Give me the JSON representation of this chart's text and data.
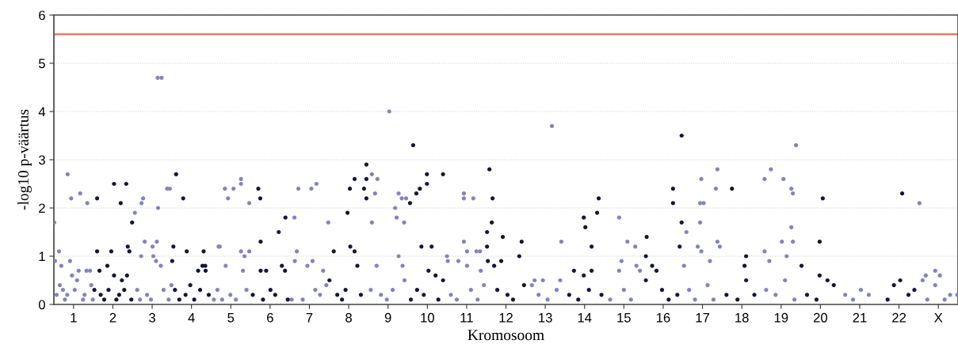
{
  "chart_data": {
    "type": "scatter",
    "xlabel": "Kromosoom",
    "ylabel": "-log10 p-väärtus",
    "xlim": [
      0.5,
      23.5
    ],
    "ylim": [
      0,
      6
    ],
    "yticks": [
      0,
      1,
      2,
      3,
      4,
      5,
      6
    ],
    "xticks": [
      1,
      2,
      3,
      4,
      5,
      6,
      7,
      8,
      9,
      10,
      11,
      12,
      13,
      14,
      15,
      16,
      17,
      18,
      19,
      20,
      21,
      22,
      {
        "value": 23,
        "label": "X"
      }
    ],
    "grid": "y",
    "marker": "circle",
    "ref_lines": [
      {
        "axis": "y",
        "value": 5.6,
        "color": "#f26a4f"
      }
    ],
    "series": [
      {
        "color": "#8282c6",
        "x": [
          0.51,
          0.53,
          0.63,
          0.69,
          0.85,
          0.91,
          0.94,
          0.96,
          1.17,
          1.35,
          1.33,
          1.42,
          1.13,
          0.57,
          0.65,
          0.73,
          0.78,
          0.84,
          1.03,
          1.09,
          1.24,
          1.28,
          1.45,
          1.49,
          2.56,
          2.73,
          2.77,
          3.14,
          3.24,
          3.15,
          3.38,
          3.45,
          2.81,
          3.12,
          3.01,
          3.03,
          2.72,
          3.22,
          3.1,
          2.62,
          2.69,
          2.87,
          2.97,
          3.29,
          3.42,
          3.49,
          4.85,
          4.93,
          5.07,
          5.26,
          5.26,
          5.47,
          4.69,
          4.72,
          5.26,
          5.35,
          5.47,
          4.87,
          5.31,
          4.57,
          4.66,
          4.78,
          4.99,
          5.13,
          5.4,
          6.62,
          6.72,
          7.05,
          7.18,
          6.68,
          6.63,
          7.08,
          6.95,
          7.48,
          7.35,
          6.55,
          6.83,
          7.15,
          7.27,
          7.43,
          8.59,
          8.73,
          8.67,
          8.59,
          8.71,
          9.03,
          9.18,
          9.22,
          9.27,
          9.35,
          9.46,
          9.41,
          9.27,
          9.37,
          8.56,
          8.82,
          8.97,
          9.12,
          9.42,
          10.5,
          10.52,
          10.79,
          10.93,
          10.93,
          11.17,
          10.93,
          11.01,
          11.25,
          11.34,
          11.01,
          11.36,
          10.6,
          10.75,
          11.11,
          11.28,
          11.44,
          13.17,
          13.41,
          12.73,
          12.94,
          13.38,
          12.66,
          12.83,
          13.06,
          13.29,
          14.88,
          15.09,
          15.29,
          14.94,
          15.32,
          15.41,
          14.88,
          14.65,
          15.0,
          15.18,
          16.59,
          16.53,
          16.88,
          16.94,
          17.03,
          16.97,
          16.94,
          17.19,
          17.34,
          17.38,
          17.38,
          17.44,
          16.97,
          16.66,
          16.81,
          17.13,
          17.28,
          18.58,
          18.74,
          19.06,
          19.26,
          19.3,
          19.38,
          19.26,
          19.3,
          19.02,
          18.58,
          19.14,
          18.7,
          18.62,
          18.86,
          19.1,
          19.34,
          21.03,
          21.23,
          20.63,
          20.83,
          22.52,
          22.6,
          22.68,
          22.92,
          23.04,
          22.92,
          23.3,
          22.72,
          23.48,
          23.16
        ],
        "values": [
          1.7,
          0.9,
          1.1,
          0.8,
          2.7,
          0.9,
          2.2,
          0.6,
          2.3,
          2.1,
          0.7,
          0.7,
          0.7,
          0.2,
          0.4,
          0.3,
          0.1,
          0.2,
          0.3,
          0.5,
          0.1,
          0.2,
          0.4,
          0.1,
          1.9,
          2.1,
          2.2,
          4.7,
          4.7,
          2.0,
          2.4,
          2.4,
          1.3,
          1.3,
          1.2,
          1.0,
          1.0,
          0.8,
          0.9,
          0.3,
          0.1,
          0.2,
          0.1,
          0.3,
          0.1,
          0.4,
          2.4,
          2.2,
          2.4,
          2.6,
          2.5,
          2.1,
          1.2,
          1.2,
          1.1,
          1.0,
          1.1,
          0.8,
          0.7,
          0.1,
          0.3,
          0.1,
          0.2,
          0.1,
          0.3,
          1.8,
          2.4,
          2.4,
          2.5,
          1.1,
          0.9,
          0.9,
          0.8,
          1.7,
          0.7,
          0.1,
          0.1,
          0.3,
          0.2,
          0.4,
          2.7,
          2.6,
          2.3,
          1.7,
          0.8,
          4.0,
          2.0,
          1.8,
          2.3,
          2.2,
          2.2,
          1.7,
          1.0,
          0.8,
          0.3,
          0.2,
          0.1,
          0.3,
          0.5,
          1.0,
          0.9,
          0.9,
          2.3,
          2.2,
          2.2,
          1.3,
          1.1,
          1.1,
          1.1,
          0.8,
          0.7,
          0.2,
          0.1,
          0.3,
          0.1,
          0.4,
          3.7,
          1.3,
          0.5,
          0.5,
          0.5,
          0.4,
          0.2,
          0.1,
          0.3,
          1.8,
          1.3,
          1.2,
          0.9,
          0.8,
          0.7,
          0.7,
          0.1,
          0.3,
          0.1,
          1.5,
          0.8,
          1.2,
          2.1,
          2.1,
          2.6,
          1.7,
          0.9,
          2.4,
          2.8,
          1.3,
          1.2,
          1.1,
          0.3,
          0.1,
          0.4,
          0.1,
          2.6,
          2.8,
          2.6,
          2.4,
          2.3,
          3.3,
          1.6,
          1.3,
          1.3,
          1.1,
          1.0,
          0.9,
          0.3,
          0.2,
          0.5,
          0.1,
          0.3,
          0.2,
          0.2,
          0.1,
          2.1,
          0.5,
          0.6,
          0.7,
          0.6,
          0.4,
          0.2,
          0.1,
          0.2,
          0.1
        ]
      },
      {
        "color": "#141440",
        "x": [
          1.6,
          1.6,
          2.03,
          2.2,
          2.34,
          2.38,
          2.42,
          2.49,
          1.96,
          1.86,
          1.66,
          2.03,
          2.23,
          2.36,
          1.53,
          1.69,
          1.78,
          1.89,
          2.09,
          2.16,
          2.29,
          2.47,
          3.61,
          3.79,
          3.54,
          3.51,
          3.88,
          4.31,
          4.28,
          4.35,
          4.17,
          4.36,
          3.58,
          3.69,
          3.85,
          3.97,
          4.07,
          4.22,
          4.44,
          5.7,
          5.75,
          5.76,
          5.76,
          5.9,
          6.22,
          6.39,
          6.3,
          6.38,
          5.56,
          5.82,
          6.01,
          6.13,
          6.45,
          7.62,
          7.97,
          8.03,
          8.15,
          8.04,
          8.15,
          8.22,
          8.39,
          8.45,
          8.45,
          8.45,
          7.51,
          7.71,
          7.83,
          7.92,
          8.31,
          9.56,
          9.64,
          9.72,
          9.81,
          9.99,
          9.99,
          9.85,
          10.11,
          10.4,
          10.03,
          10.21,
          10.4,
          9.58,
          9.74,
          9.91,
          10.28,
          11.58,
          11.66,
          11.64,
          11.52,
          11.52,
          11.92,
          11.88,
          11.7,
          12.4,
          12.34,
          11.54,
          11.78,
          12.04,
          12.18,
          12.46,
          13.98,
          14.02,
          14.32,
          14.36,
          14.18,
          13.73,
          14.18,
          13.98,
          13.61,
          13.84,
          14.11,
          14.43,
          15.58,
          15.56,
          15.72,
          15.83,
          16.25,
          16.25,
          16.42,
          16.47,
          16.47,
          15.56,
          15.97,
          16.14,
          16.36,
          17.75,
          18.11,
          18.07,
          18.11,
          17.61,
          17.89,
          18.32,
          19.98,
          20.06,
          19.98,
          20.18,
          20.34,
          19.52,
          19.66,
          19.9,
          22.08,
          22.03,
          21.87,
          22.39,
          21.71,
          22.24
        ],
        "values": [
          2.2,
          1.1,
          2.5,
          2.1,
          2.5,
          1.2,
          1.1,
          1.7,
          1.1,
          0.8,
          0.7,
          0.6,
          0.5,
          0.6,
          0.3,
          0.2,
          0.1,
          0.3,
          0.1,
          0.2,
          0.3,
          0.1,
          2.7,
          2.2,
          1.2,
          0.9,
          1.1,
          1.1,
          0.8,
          0.8,
          0.7,
          0.7,
          0.3,
          0.1,
          0.2,
          0.4,
          0.1,
          0.3,
          0.2,
          2.4,
          2.2,
          1.3,
          0.7,
          0.7,
          1.5,
          1.8,
          0.8,
          0.7,
          0.2,
          0.1,
          0.3,
          0.2,
          0.1,
          1.1,
          1.9,
          2.4,
          2.6,
          1.2,
          1.1,
          0.8,
          2.4,
          2.9,
          2.6,
          2.2,
          0.5,
          0.2,
          0.1,
          0.3,
          0.2,
          2.1,
          3.3,
          2.3,
          2.4,
          2.7,
          2.5,
          1.2,
          1.2,
          2.7,
          0.7,
          0.6,
          0.5,
          0.1,
          0.3,
          0.2,
          0.1,
          2.8,
          2.2,
          1.7,
          1.5,
          1.2,
          1.4,
          0.9,
          0.8,
          1.3,
          1.0,
          0.9,
          0.3,
          0.2,
          0.1,
          0.4,
          1.8,
          1.6,
          1.9,
          2.2,
          1.2,
          0.7,
          0.7,
          0.6,
          0.2,
          0.1,
          0.3,
          0.2,
          1.4,
          1.0,
          0.8,
          0.7,
          2.4,
          2.1,
          1.2,
          3.5,
          1.7,
          0.5,
          0.3,
          0.1,
          0.2,
          2.4,
          1.0,
          0.8,
          0.5,
          0.2,
          0.1,
          0.2,
          1.3,
          2.2,
          0.6,
          0.5,
          0.4,
          0.8,
          0.2,
          0.1,
          2.3,
          0.5,
          0.4,
          0.3,
          0.1,
          0.2
        ]
      }
    ]
  }
}
